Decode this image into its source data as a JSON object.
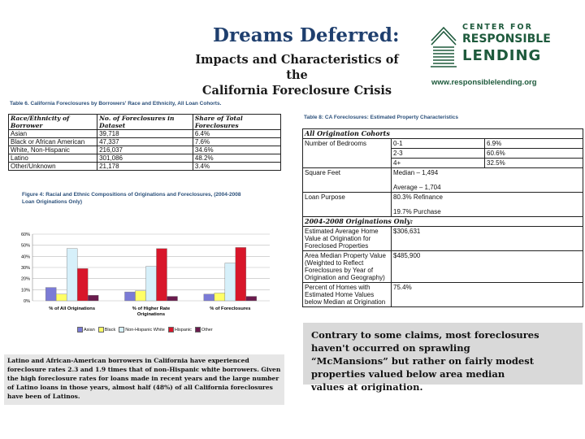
{
  "header": {
    "title": "Dreams Deferred:",
    "subtitle_line1": "Impacts and Characteristics of the",
    "subtitle_line2": "California Foreclosure Crisis"
  },
  "logo": {
    "line1": "CENTER FOR",
    "line2": "RESPONSIBLE",
    "line3": "LENDING",
    "url": "www.responsiblelending.org",
    "brand_color": "#1e5a3c"
  },
  "table6": {
    "caption": "Table 6. California Foreclosures by Borrowers' Race and Ethnicity, All Loan Cohorts.",
    "headers": [
      "Race/Ethnicity of Borrower",
      "No. of Foreclosures in Dataset",
      "Share of Total Foreclosures"
    ],
    "rows": [
      [
        "Asian",
        "39,718",
        "6.4%"
      ],
      [
        "Black or African American",
        "47,337",
        "7.6%"
      ],
      [
        "White, Non-Hispanic",
        "216,037",
        "34.6%"
      ],
      [
        "Latino",
        "301,086",
        "48.2%"
      ],
      [
        "Other/Unknown",
        "21,178",
        "3.4%"
      ]
    ]
  },
  "table8": {
    "caption": "Table 8: CA Foreclosures: Estimated Property Characteristics",
    "section1": "All Origination Cohorts",
    "bedrooms_label": "Number of Bedrooms",
    "bedrooms": [
      [
        "0-1",
        "6.9%"
      ],
      [
        "2-3",
        "60.6%"
      ],
      [
        "4+",
        "32.5%"
      ]
    ],
    "sqft_label": "Square Feet",
    "sqft_median": "Median – 1,494",
    "sqft_average": "Average – 1,704",
    "purpose_label": "Loan Purpose",
    "purpose_refi": "80.3% Refinance",
    "purpose_purchase": "19.7% Purchase",
    "section2": "2004-2008 Originations Only:",
    "est_value_label": "Estimated Average Home Value at Origination for Foreclosed Properties",
    "est_value": "$306,631",
    "area_median_label": "Area Median Property Value (Weighted to Reflect Foreclosures by Year of Origination and Geography)",
    "area_median": "$485,900",
    "pct_below_label": "Percent of Homes with Estimated Home Values below Median at Origination",
    "pct_below": "75.4%"
  },
  "figure4": {
    "caption_line1": "Figure 4:  Racial and Ethnic Compositions of Originations and Foreclosures, (2004-2008",
    "caption_line2": "Loan Originations Only)"
  },
  "chart_data": {
    "type": "bar",
    "categories": [
      "% of All Originations",
      "% of Higher Rate Originations",
      "% of Foreclosures"
    ],
    "series": [
      {
        "name": "Asian",
        "color": "#7b7bd6",
        "values": [
          12,
          8,
          6
        ]
      },
      {
        "name": "Black",
        "color": "#ffff66",
        "values": [
          6,
          9,
          7
        ]
      },
      {
        "name": "Non-Hispanic White",
        "color": "#d6f0fa",
        "values": [
          47,
          31,
          34
        ]
      },
      {
        "name": "Hispanic",
        "color": "#d8162a",
        "values": [
          29,
          47,
          48
        ]
      },
      {
        "name": "Other",
        "color": "#6a1b4d",
        "values": [
          5,
          4,
          4
        ]
      }
    ],
    "ylim": [
      0,
      60
    ],
    "yticks": [
      "0%",
      "10%",
      "20%",
      "30%",
      "40%",
      "50%",
      "60%"
    ],
    "grid": true,
    "legend": "bottom"
  },
  "note": {
    "text": "Latino and African-American borrowers in California have experienced foreclosure rates 2.3 and 1.9 times that of non-Hispanic white borrowers.  Given the high foreclosure rates for loans made in recent years and the large number of Latino loans in those years, almost half (48%) of all California foreclosures have been of Latinos."
  },
  "callout": {
    "line1": "Contrary to some claims, most foreclosures haven't occurred on sprawling",
    "line2": "“McMansions” but rather on fairly modest properties valued below area median",
    "line3": "values at origination."
  }
}
